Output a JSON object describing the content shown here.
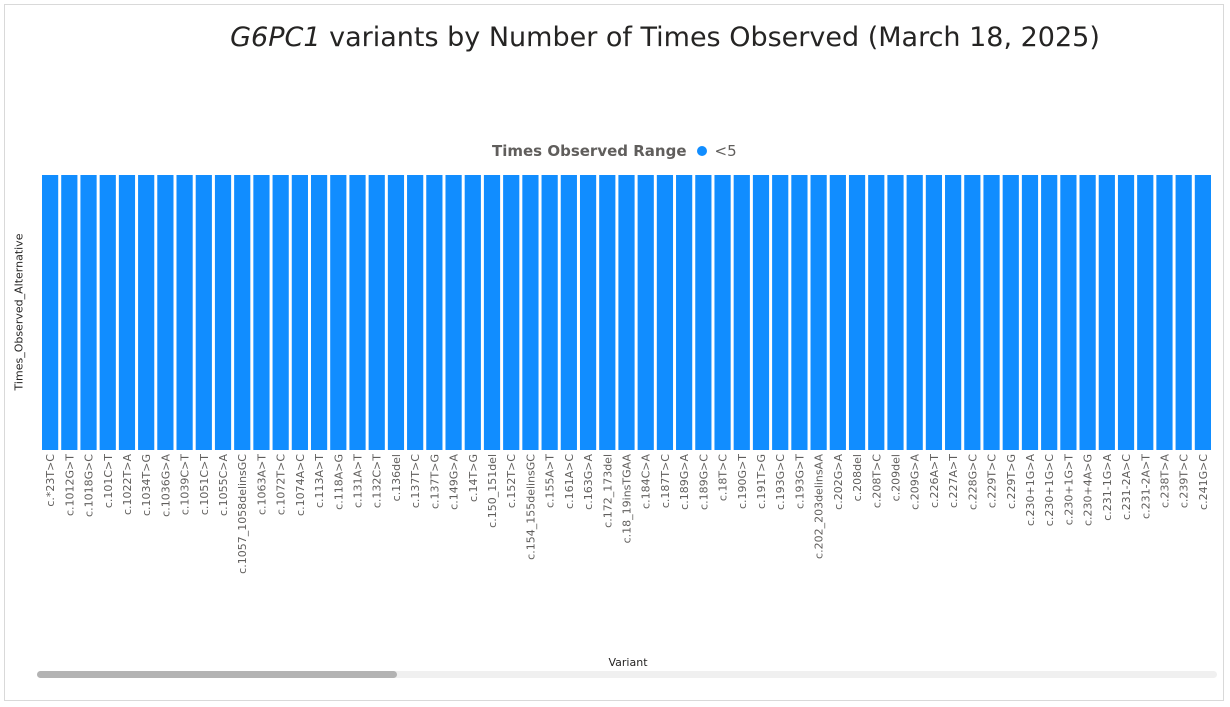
{
  "title": {
    "italic_part": "G6PC1",
    "rest": " variants by Number of Times Observed (March 18, 2025)"
  },
  "legend": {
    "title": "Times Observed Range",
    "label": "<5",
    "color": "#118dff"
  },
  "chart_data": {
    "type": "bar",
    "xlabel": "Variant",
    "ylabel": "Times_Observed_Alternative",
    "categories": [
      "c.*23T>C",
      "c.1012G>T",
      "c.1018G>C",
      "c.101C>T",
      "c.1022T>A",
      "c.1034T>G",
      "c.1036G>A",
      "c.1039C>T",
      "c.1051C>T",
      "c.1055C>A",
      "c.1057_1058delinsGC",
      "c.1063A>T",
      "c.1072T>C",
      "c.1074A>C",
      "c.113A>T",
      "c.118A>G",
      "c.131A>T",
      "c.132C>T",
      "c.136del",
      "c.137T>C",
      "c.137T>G",
      "c.149G>A",
      "c.14T>G",
      "c.150_151del",
      "c.152T>C",
      "c.154_155delinsGC",
      "c.155A>T",
      "c.161A>C",
      "c.163G>A",
      "c.172_173del",
      "c.18_19insTGAA",
      "c.184C>A",
      "c.187T>C",
      "c.189G>A",
      "c.189G>C",
      "c.18T>C",
      "c.190G>T",
      "c.191T>G",
      "c.193G>C",
      "c.193G>T",
      "c.202_203delinsAA",
      "c.202G>A",
      "c.208del",
      "c.208T>C",
      "c.209del",
      "c.209G>A",
      "c.226A>T",
      "c.227A>T",
      "c.228G>C",
      "c.229T>C",
      "c.229T>G",
      "c.230+1G>A",
      "c.230+1G>C",
      "c.230+1G>T",
      "c.230+4A>G",
      "c.231-1G>A",
      "c.231-2A>C",
      "c.231-2A>T",
      "c.238T>A",
      "c.239T>C",
      "c.241G>C"
    ],
    "series": [
      {
        "name": "<5",
        "color": "#118dff",
        "values": [
          1,
          1,
          1,
          1,
          1,
          1,
          1,
          1,
          1,
          1,
          1,
          1,
          1,
          1,
          1,
          1,
          1,
          1,
          1,
          1,
          1,
          1,
          1,
          1,
          1,
          1,
          1,
          1,
          1,
          1,
          1,
          1,
          1,
          1,
          1,
          1,
          1,
          1,
          1,
          1,
          1,
          1,
          1,
          1,
          1,
          1,
          1,
          1,
          1,
          1,
          1,
          1,
          1,
          1,
          1,
          1,
          1,
          1,
          1,
          1,
          1
        ]
      }
    ],
    "ylim": [
      0,
      1
    ],
    "grid": false,
    "legend_position": "top-center",
    "scrollbar": true
  }
}
